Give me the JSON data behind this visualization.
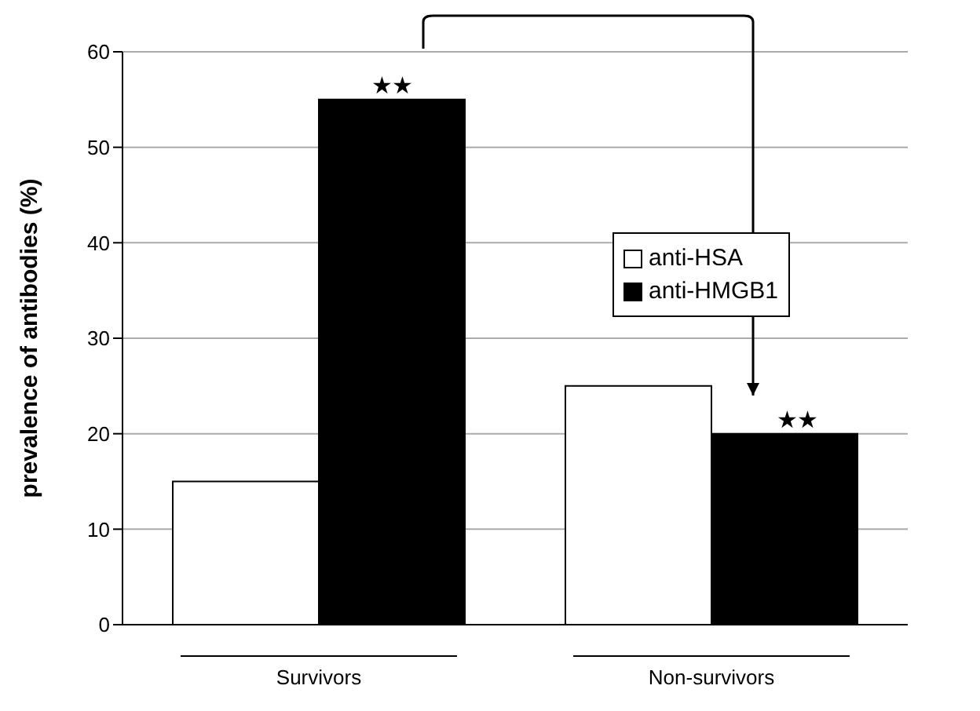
{
  "chart_data": {
    "type": "bar",
    "ylabel": "prevalence of antibodies (%)",
    "categories": [
      "Survivors",
      "Non-survivors"
    ],
    "series": [
      {
        "name": "anti-HSA",
        "color": "#ffffff",
        "values": [
          15,
          25
        ]
      },
      {
        "name": "anti-HMGB1",
        "color": "#000000",
        "values": [
          55,
          20
        ]
      }
    ],
    "ylim": [
      0,
      60
    ],
    "yticks": [
      0,
      10,
      20,
      30,
      40,
      50,
      60
    ],
    "grid": "y",
    "legend": "right",
    "annotations": [
      {
        "text": "★★",
        "x": "Survivors",
        "y": 55
      },
      {
        "text": "★★",
        "x": "Non-survivors",
        "y": 20
      }
    ]
  }
}
